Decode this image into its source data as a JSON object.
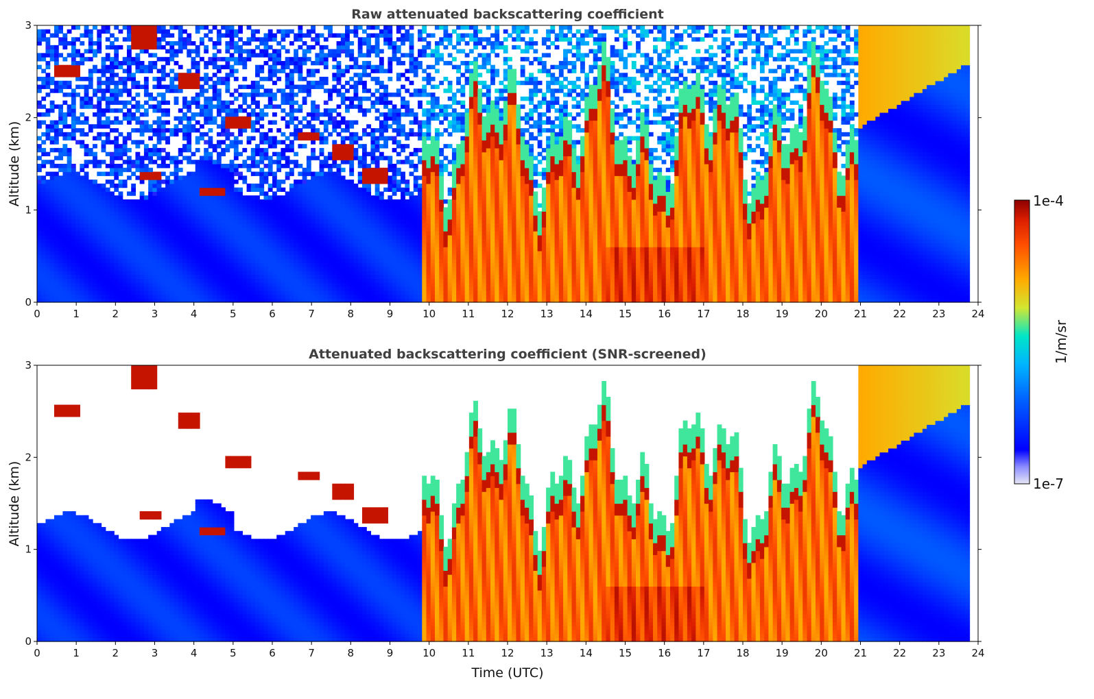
{
  "chart_data": [
    {
      "type": "heatmap",
      "title": "Raw attenuated backscattering coefficient",
      "xlabel": "",
      "ylabel": "Altitude (km)",
      "xlim": [
        0,
        24
      ],
      "ylim": [
        0,
        3
      ],
      "xticks": [
        0,
        1,
        2,
        3,
        4,
        5,
        6,
        7,
        8,
        9,
        10,
        11,
        12,
        13,
        14,
        15,
        16,
        17,
        18,
        19,
        20,
        21,
        22,
        23,
        24
      ],
      "yticks": [
        0,
        1,
        2,
        3
      ],
      "data_extent_x": [
        0,
        23.75
      ],
      "screened": false,
      "regimes": [
        {
          "x": [
            0,
            9.85
          ],
          "description": "clear boundary layer (low backscatter) below ~1.2-1.5 km, noisy signal above, scattered thin cloud layers 1-2.8 km"
        },
        {
          "x": [
            9.85,
            20.9
          ],
          "description": "dense high backscatter from surface up to cloud tops at ~1.5-2.5 km"
        },
        {
          "x": [
            20.9,
            23.75
          ],
          "description": "clear low backscatter below ~2 km, elevated layer 2-3 km"
        }
      ]
    },
    {
      "type": "heatmap",
      "title": "Attenuated backscattering coefficient (SNR-screened)",
      "xlabel": "Time (UTC)",
      "ylabel": "Altitude (km)",
      "xlim": [
        0,
        24
      ],
      "ylim": [
        0,
        3
      ],
      "xticks": [
        0,
        1,
        2,
        3,
        4,
        5,
        6,
        7,
        8,
        9,
        10,
        11,
        12,
        13,
        14,
        15,
        16,
        17,
        18,
        19,
        20,
        21,
        22,
        23,
        24
      ],
      "yticks": [
        0,
        1,
        2,
        3
      ],
      "data_extent_x": [
        0,
        23.75
      ],
      "screened": true
    }
  ],
  "colorbar": {
    "label": "1/m/sr",
    "max_label": "1e-4",
    "min_label": "1e-7",
    "scale": "log",
    "range": [
      1e-07,
      0.0001
    ],
    "colormap": [
      "#e6e6f5",
      "#0000ff",
      "#00b4ff",
      "#00e6c8",
      "#d2e632",
      "#ffaa00",
      "#ff5000",
      "#dc1e00",
      "#8c0000"
    ]
  }
}
